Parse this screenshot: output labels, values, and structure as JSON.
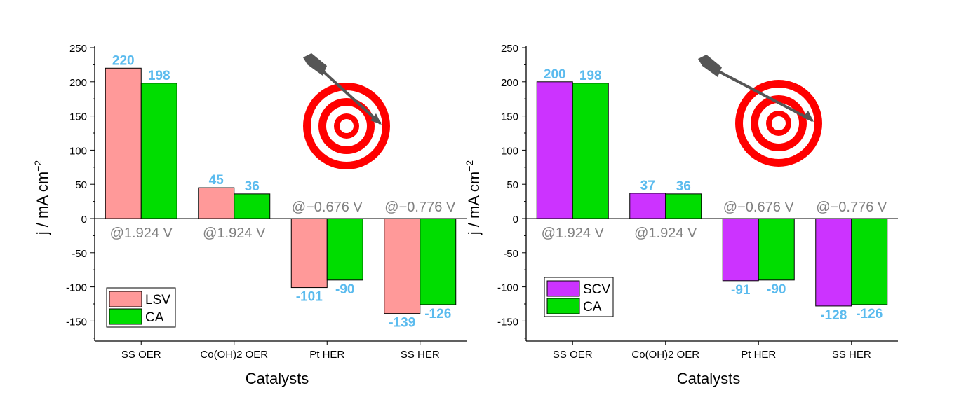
{
  "chart_data": [
    {
      "type": "bar",
      "categories": [
        "SS OER",
        "Co(OH)2 OER",
        "Pt HER",
        "SS HER"
      ],
      "series": [
        {
          "name": "LSV",
          "values": [
            220,
            45,
            -101,
            -139
          ],
          "color": "#ff9999",
          "label_color": "#5bbbee"
        },
        {
          "name": "CA",
          "values": [
            198,
            36,
            -90,
            -126
          ],
          "color": "#00dd00",
          "label_color": "#5bbbee"
        }
      ],
      "potential_labels": [
        "@1.924 V",
        "@1.924 V",
        "@−0.676 V",
        "@−0.776 V"
      ],
      "title": "",
      "xlabel": "Catalysts",
      "ylabel": "j / mA cm",
      "ylabel_superscript": "−2",
      "ylim": [
        -175,
        250
      ],
      "yticks": [
        "250",
        "200",
        "150",
        "100",
        "50",
        "0",
        "-50",
        "-100",
        "-150"
      ],
      "legend_position": "bottom-left",
      "grid": false,
      "decoration": "arrow-hitting-target-icon"
    },
    {
      "type": "bar",
      "categories": [
        "SS OER",
        "Co(OH)2 OER",
        "Pt HER",
        "SS HER"
      ],
      "series": [
        {
          "name": "SCV",
          "values": [
            200,
            37,
            -91,
            -128
          ],
          "color": "#cc33ff",
          "label_color": "#5bbbee"
        },
        {
          "name": "CA",
          "values": [
            198,
            36,
            -90,
            -126
          ],
          "color": "#00dd00",
          "label_color": "#5bbbee"
        }
      ],
      "potential_labels": [
        "@1.924 V",
        "@1.924 V",
        "@−0.676 V",
        "@−0.776 V"
      ],
      "title": "",
      "xlabel": "Catalysts",
      "ylabel": "j / mA cm",
      "ylabel_superscript": "−2",
      "ylim": [
        -175,
        250
      ],
      "yticks": [
        "250",
        "200",
        "150",
        "100",
        "50",
        "0",
        "-50",
        "-100",
        "-150"
      ],
      "legend_position": "bottom-left",
      "grid": false,
      "decoration": "arrow-hitting-target-icon"
    }
  ],
  "colors": {
    "axis": "#000000",
    "potential_label": "#808080",
    "target_red": "#ff0000",
    "arrow": "#555555"
  }
}
